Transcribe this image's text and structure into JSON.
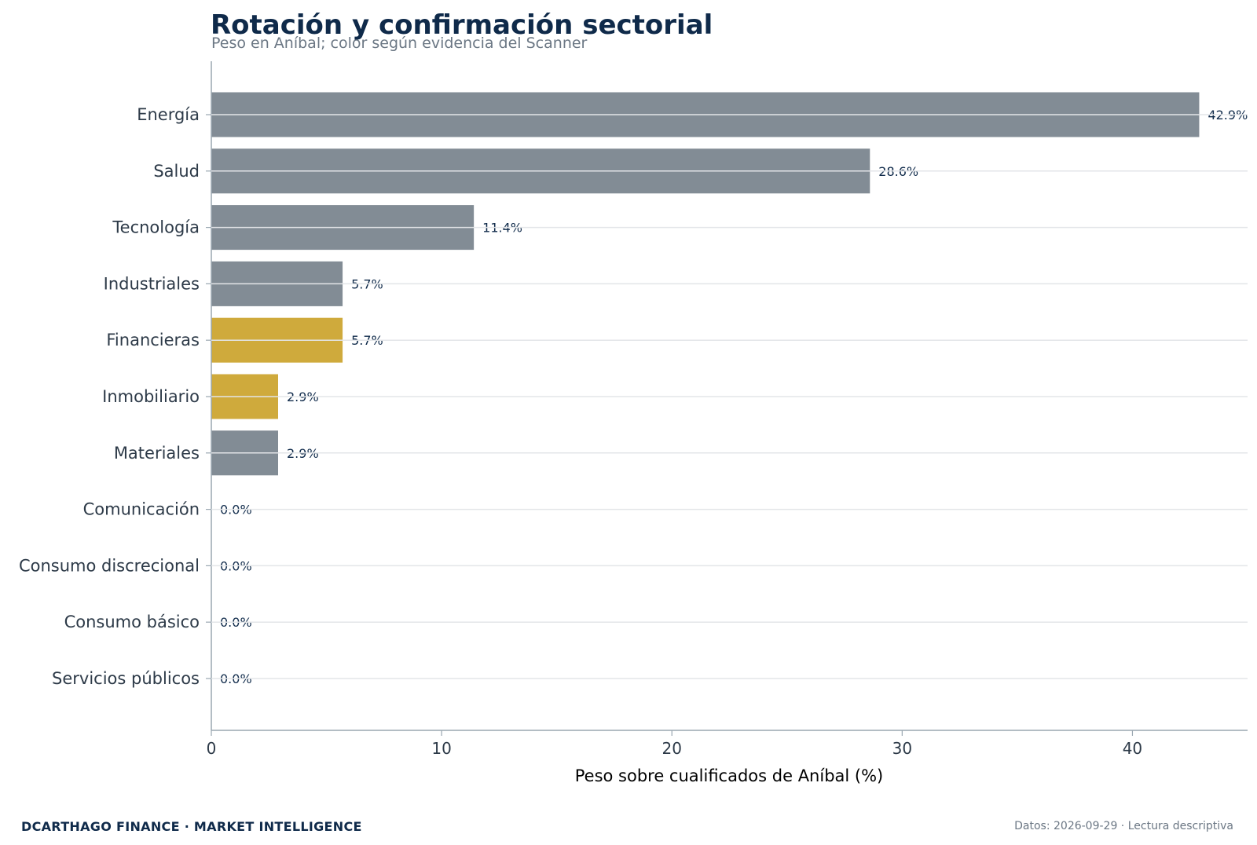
{
  "chart_data": {
    "type": "bar",
    "orientation": "horizontal",
    "title": "Rotación y confirmación sectorial",
    "subtitle": "Peso en Aníbal; color según evidencia del Scanner",
    "xlabel": "Peso sobre cualificados de Aníbal (%)",
    "xlim": [
      0,
      45
    ],
    "xticks": [
      0,
      10,
      20,
      30,
      40
    ],
    "grid": "horizontal",
    "categories": [
      "Energía",
      "Salud",
      "Tecnología",
      "Industriales",
      "Financieras",
      "Inmobiliario",
      "Materiales",
      "Comunicación",
      "Consumo discrecional",
      "Consumo básico",
      "Servicios públicos"
    ],
    "values": [
      42.9,
      28.6,
      11.4,
      5.7,
      5.7,
      2.9,
      2.9,
      0.0,
      0.0,
      0.0,
      0.0
    ],
    "value_labels": [
      "42.9%",
      "28.6%",
      "11.4%",
      "5.7%",
      "5.7%",
      "2.9%",
      "2.9%",
      "0.0%",
      "0.0%",
      "0.0%",
      "0.0%"
    ],
    "bar_colors": [
      "#828c95",
      "#828c95",
      "#828c95",
      "#828c95",
      "#cfaa3c",
      "#cfaa3c",
      "#828c95",
      "#828c95",
      "#828c95",
      "#828c95",
      "#828c95"
    ]
  },
  "footer": {
    "brand": "DCARTHAGO FINANCE · MARKET INTELLIGENCE",
    "note": "Datos: 2026-09-29 · Lectura descriptiva"
  }
}
